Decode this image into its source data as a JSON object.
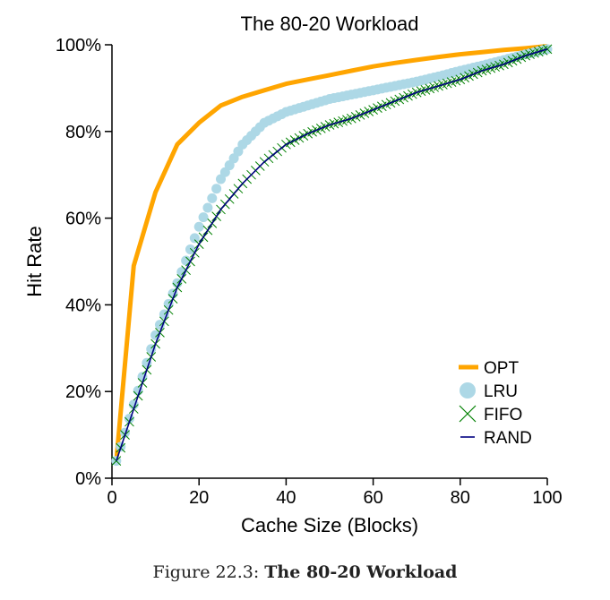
{
  "chart_data": {
    "type": "line",
    "title": "The 80-20 Workload",
    "xlabel": "Cache Size (Blocks)",
    "ylabel": "Hit Rate",
    "xlim": [
      0,
      100
    ],
    "ylim": [
      0,
      100
    ],
    "x_ticks": [
      "0",
      "20",
      "40",
      "60",
      "80",
      "100"
    ],
    "y_ticks": [
      "0%",
      "20%",
      "40%",
      "60%",
      "80%",
      "100%"
    ],
    "grid": false,
    "legend_position": "bottom-right",
    "x": [
      1,
      5,
      10,
      15,
      20,
      25,
      30,
      35,
      40,
      45,
      50,
      55,
      60,
      65,
      70,
      75,
      80,
      85,
      90,
      95,
      100
    ],
    "series": [
      {
        "name": "OPT",
        "color": "#ffa500",
        "marker": "thick-line",
        "values": [
          4,
          49,
          66,
          77,
          82,
          86,
          88,
          89.5,
          91,
          92,
          93,
          94,
          95,
          95.8,
          96.5,
          97.2,
          97.8,
          98.3,
          98.8,
          99.2,
          99.7
        ]
      },
      {
        "name": "LRU",
        "color": "#add8e6",
        "marker": "circle",
        "values": [
          4,
          17,
          33,
          45,
          58,
          69,
          77,
          82,
          84.5,
          86,
          87.5,
          88.5,
          89.5,
          90.5,
          91.5,
          92.7,
          94,
          95.2,
          96.5,
          97.8,
          99
        ]
      },
      {
        "name": "FIFO",
        "color": "#008000",
        "marker": "x",
        "values": [
          4,
          16,
          31,
          44,
          54,
          62,
          68,
          73,
          77,
          79.5,
          81.5,
          83,
          85,
          87,
          89,
          90.5,
          92,
          94,
          95.5,
          97.5,
          99
        ]
      },
      {
        "name": "RAND",
        "color": "#000080",
        "marker": "line",
        "values": [
          4,
          16,
          31,
          44,
          54,
          62,
          68,
          73,
          77,
          79.5,
          81.5,
          83,
          85,
          87,
          89,
          90.5,
          92,
          94,
          95.5,
          97.5,
          99
        ]
      }
    ]
  },
  "caption": {
    "prefix": "Figure 22.3: ",
    "title": "The 80-20 Workload"
  }
}
